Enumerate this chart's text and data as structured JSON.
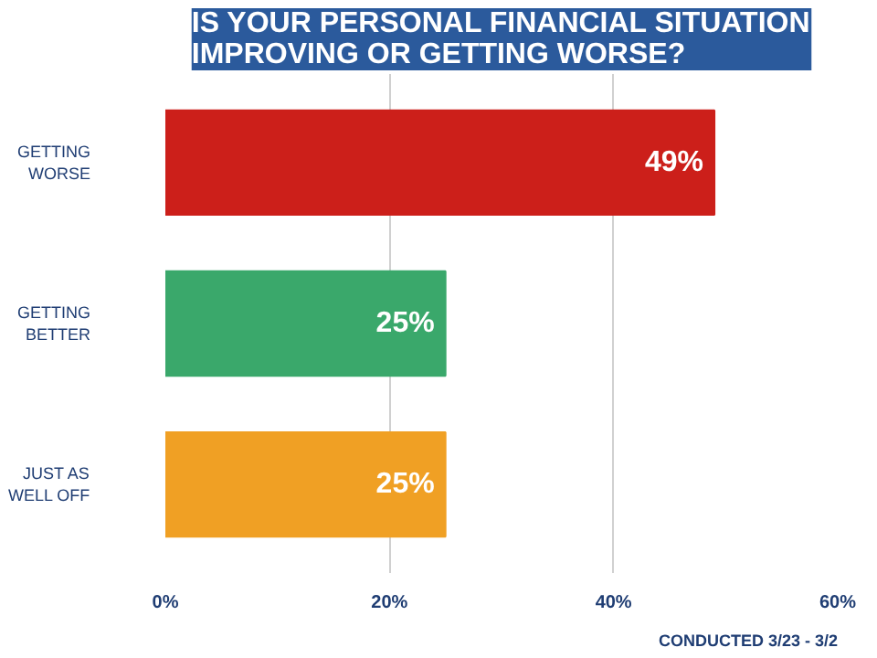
{
  "chart_data": {
    "type": "bar",
    "orientation": "horizontal",
    "title": "IS YOUR PERSONAL FINANCIAL SITUATION IMPROVING OR GETTING WORSE?",
    "categories": [
      "GETTING WORSE",
      "GETTING BETTER",
      "JUST AS WELL OFF"
    ],
    "values": [
      49,
      25,
      25
    ],
    "colors": [
      "#cc1f1a",
      "#3aa86b",
      "#f0a024"
    ],
    "value_labels": [
      "49%",
      "25%",
      "25%"
    ],
    "xlim": [
      0,
      60
    ],
    "xticks": [
      {
        "value": 0,
        "label": "0%"
      },
      {
        "value": 20,
        "label": "20%"
      },
      {
        "value": 40,
        "label": "40%"
      },
      {
        "value": 60,
        "label": "60%"
      }
    ],
    "grid": "x",
    "annotations": [
      "CONDUCTED 3/23 - 3/2"
    ]
  }
}
